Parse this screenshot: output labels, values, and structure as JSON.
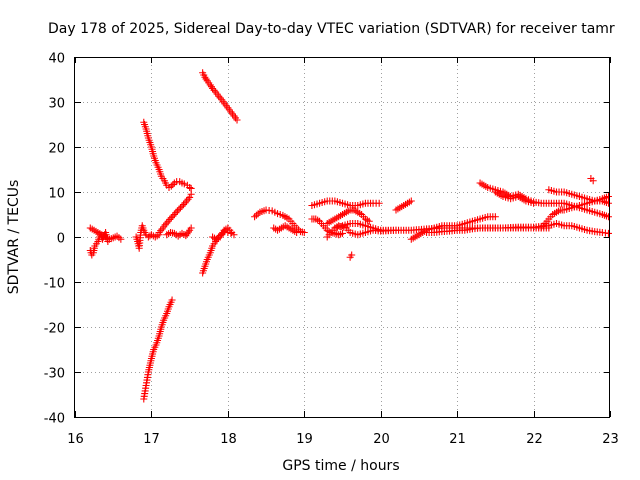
{
  "chart_data": {
    "type": "scatter",
    "title": "Day 178 of 2025, Sidereal Day-to-day VTEC variation (SDTVAR) for receiver tamr",
    "xlabel": "GPS time / hours",
    "ylabel": "SDTVAR / TECUs",
    "xlim": [
      16,
      23
    ],
    "ylim": [
      -40,
      40
    ],
    "xticks": [
      16,
      17,
      18,
      19,
      20,
      21,
      22,
      23
    ],
    "yticks": [
      -40,
      -30,
      -20,
      -10,
      0,
      10,
      20,
      30,
      40
    ],
    "grid": true,
    "marker": "+",
    "color": "#ff0000",
    "series": [
      {
        "values": [
          [
            16.2,
            2
          ],
          [
            16.25,
            1.5
          ],
          [
            16.3,
            1
          ],
          [
            16.35,
            0.5
          ],
          [
            16.4,
            0
          ],
          [
            16.45,
            -0.5
          ],
          [
            16.5,
            -0.2
          ],
          [
            16.55,
            0.2
          ],
          [
            16.6,
            -0.5
          ]
        ]
      },
      {
        "values": [
          [
            16.2,
            -3
          ],
          [
            16.22,
            -4
          ],
          [
            16.24,
            -3.5
          ],
          [
            16.26,
            -2
          ],
          [
            16.3,
            -1
          ],
          [
            16.33,
            0.5
          ],
          [
            16.36,
            -0.5
          ],
          [
            16.4,
            1
          ],
          [
            16.43,
            -1
          ]
        ]
      },
      {
        "values": [
          [
            16.8,
            0
          ],
          [
            16.82,
            -1
          ],
          [
            16.84,
            -2.5
          ],
          [
            16.86,
            1
          ],
          [
            16.88,
            2.5
          ],
          [
            16.9,
            1.5
          ],
          [
            16.93,
            0.5
          ],
          [
            16.96,
            0
          ],
          [
            17,
            0.5
          ],
          [
            17.05,
            0
          ],
          [
            17.1,
            0.5
          ]
        ]
      },
      {
        "values": [
          [
            16.9,
            25.5
          ],
          [
            16.93,
            24
          ],
          [
            16.96,
            22
          ],
          [
            17,
            20
          ],
          [
            17.03,
            18
          ],
          [
            17.06,
            16.5
          ],
          [
            17.1,
            15
          ],
          [
            17.13,
            13.5
          ],
          [
            17.17,
            12.5
          ],
          [
            17.2,
            11.5
          ],
          [
            17.23,
            11
          ],
          [
            17.26,
            11.3
          ],
          [
            17.3,
            12
          ],
          [
            17.33,
            12.3
          ],
          [
            17.37,
            12.3
          ],
          [
            17.4,
            12
          ],
          [
            17.43,
            11.8
          ],
          [
            17.47,
            11.5
          ],
          [
            17.5,
            11
          ],
          [
            17.52,
            10.8
          ]
        ]
      },
      {
        "values": [
          [
            17.1,
            1
          ],
          [
            17.14,
            1.8
          ],
          [
            17.18,
            2.7
          ],
          [
            17.22,
            3.5
          ],
          [
            17.26,
            4.3
          ],
          [
            17.3,
            5
          ],
          [
            17.34,
            5.8
          ],
          [
            17.38,
            6.5
          ],
          [
            17.42,
            7.2
          ],
          [
            17.46,
            8
          ],
          [
            17.5,
            8.8
          ],
          [
            17.52,
            9.5
          ]
        ]
      },
      {
        "values": [
          [
            17.2,
            0.5
          ],
          [
            17.25,
            1
          ],
          [
            17.3,
            0.8
          ],
          [
            17.35,
            0.2
          ],
          [
            17.4,
            0.8
          ],
          [
            17.45,
            0.3
          ],
          [
            17.5,
            1.5
          ],
          [
            17.52,
            2
          ]
        ]
      },
      {
        "values": [
          [
            16.9,
            -36
          ],
          [
            16.93,
            -33
          ],
          [
            16.96,
            -30
          ],
          [
            17,
            -27
          ],
          [
            17.03,
            -25
          ],
          [
            17.06,
            -24
          ],
          [
            17.1,
            -22
          ],
          [
            17.13,
            -20
          ],
          [
            17.16,
            -18.5
          ],
          [
            17.2,
            -17
          ],
          [
            17.23,
            -15.5
          ],
          [
            17.27,
            -14
          ]
        ]
      },
      {
        "values": [
          [
            17.67,
            36.5
          ],
          [
            17.7,
            35.5
          ],
          [
            17.73,
            34.7
          ],
          [
            17.77,
            33.8
          ],
          [
            17.8,
            33
          ],
          [
            17.84,
            32.2
          ],
          [
            17.88,
            31.3
          ],
          [
            17.92,
            30.5
          ],
          [
            17.96,
            29.6
          ],
          [
            18,
            28.7
          ],
          [
            18.04,
            27.8
          ],
          [
            18.08,
            26.9
          ],
          [
            18.12,
            26
          ]
        ]
      },
      {
        "values": [
          [
            17.67,
            -8
          ],
          [
            17.7,
            -6.5
          ],
          [
            17.73,
            -5
          ],
          [
            17.77,
            -3.5
          ],
          [
            17.8,
            -2
          ],
          [
            17.84,
            -1
          ],
          [
            17.88,
            0
          ],
          [
            17.92,
            0.7
          ],
          [
            17.96,
            1.2
          ],
          [
            18,
            1
          ],
          [
            18.04,
            0.8
          ],
          [
            18.08,
            0.5
          ]
        ]
      },
      {
        "values": [
          [
            17.8,
            0
          ],
          [
            17.85,
            -0.5
          ],
          [
            17.9,
            0
          ],
          [
            17.95,
            1.5
          ],
          [
            18,
            2
          ],
          [
            18.05,
            1
          ]
        ]
      },
      {
        "values": [
          [
            18.35,
            4.5
          ],
          [
            18.42,
            5.5
          ],
          [
            18.5,
            6
          ],
          [
            18.58,
            5.8
          ],
          [
            18.65,
            5.2
          ],
          [
            18.72,
            4.8
          ],
          [
            18.8,
            4
          ],
          [
            18.85,
            3
          ],
          [
            18.9,
            2
          ],
          [
            18.95,
            1.2
          ],
          [
            19,
            1
          ]
        ]
      },
      {
        "values": [
          [
            18.6,
            2
          ],
          [
            18.65,
            1.5
          ],
          [
            18.7,
            2
          ],
          [
            18.75,
            2.5
          ],
          [
            18.8,
            2
          ],
          [
            18.85,
            1.5
          ],
          [
            18.9,
            1
          ]
        ]
      },
      {
        "values": [
          [
            19.1,
            4
          ],
          [
            19.15,
            4
          ],
          [
            19.2,
            3.5
          ],
          [
            19.25,
            2.5
          ],
          [
            19.3,
            1.5
          ],
          [
            19.35,
            1
          ],
          [
            19.4,
            0.8
          ],
          [
            19.45,
            0.5
          ],
          [
            19.5,
            0.8
          ]
        ]
      },
      {
        "values": [
          [
            19.1,
            7
          ],
          [
            19.2,
            7.5
          ],
          [
            19.3,
            8
          ],
          [
            19.4,
            8
          ],
          [
            19.5,
            7.5
          ],
          [
            19.6,
            7
          ],
          [
            19.7,
            7
          ],
          [
            19.8,
            7.5
          ],
          [
            19.9,
            7.5
          ],
          [
            19.98,
            7.5
          ]
        ]
      },
      {
        "values": [
          [
            19.3,
            3
          ],
          [
            19.35,
            3.5
          ],
          [
            19.4,
            4
          ],
          [
            19.45,
            4.5
          ],
          [
            19.5,
            5
          ],
          [
            19.55,
            5.5
          ],
          [
            19.6,
            6
          ],
          [
            19.65,
            6
          ],
          [
            19.7,
            5.5
          ],
          [
            19.75,
            5
          ],
          [
            19.8,
            4
          ],
          [
            19.85,
            3.5
          ]
        ]
      },
      {
        "values": [
          [
            19.4,
            2
          ],
          [
            19.5,
            2.5
          ],
          [
            19.6,
            3
          ],
          [
            19.7,
            3
          ],
          [
            19.8,
            2.5
          ],
          [
            19.9,
            2
          ],
          [
            20,
            1.5
          ],
          [
            20.1,
            1.5
          ],
          [
            20.2,
            1.5
          ]
        ]
      },
      {
        "values": [
          [
            19.3,
            0
          ],
          [
            19.35,
            1
          ],
          [
            19.4,
            2
          ],
          [
            19.45,
            2.5
          ],
          [
            19.55,
            2
          ],
          [
            19.6,
            1
          ],
          [
            19.7,
            0.5
          ],
          [
            19.8,
            1
          ],
          [
            19.9,
            1.5
          ],
          [
            20,
            1.3
          ],
          [
            20.2,
            1.5
          ],
          [
            20.4,
            1.5
          ],
          [
            20.6,
            1.8
          ],
          [
            20.8,
            2
          ],
          [
            21,
            2
          ],
          [
            21.2,
            2
          ],
          [
            21.4,
            2
          ],
          [
            21.6,
            2
          ],
          [
            21.8,
            2
          ],
          [
            22,
            2
          ],
          [
            22.2,
            2
          ]
        ]
      },
      {
        "values": [
          [
            19.6,
            -4.5
          ],
          [
            19.62,
            -4
          ]
        ]
      },
      {
        "values": [
          [
            20.2,
            6
          ],
          [
            20.25,
            6.5
          ],
          [
            20.3,
            7
          ],
          [
            20.35,
            7.5
          ],
          [
            20.4,
            8
          ]
        ]
      },
      {
        "values": [
          [
            20.4,
            -0.5
          ],
          [
            20.45,
            0
          ],
          [
            20.5,
            0.5
          ],
          [
            20.55,
            1
          ],
          [
            20.6,
            1.5
          ],
          [
            20.7,
            2
          ],
          [
            20.8,
            2.5
          ],
          [
            20.9,
            2.5
          ],
          [
            21,
            2.5
          ],
          [
            21.1,
            3
          ],
          [
            21.2,
            3.5
          ],
          [
            21.3,
            4
          ],
          [
            21.4,
            4.5
          ],
          [
            21.5,
            4.5
          ]
        ]
      },
      {
        "values": [
          [
            20.6,
            1
          ],
          [
            20.7,
            1
          ],
          [
            20.8,
            1.2
          ],
          [
            20.9,
            1.3
          ],
          [
            21,
            1.5
          ],
          [
            21.1,
            1.5
          ],
          [
            21.2,
            1.8
          ],
          [
            21.3,
            2
          ],
          [
            21.4,
            2
          ],
          [
            21.5,
            2
          ],
          [
            21.6,
            2
          ],
          [
            21.8,
            2.2
          ],
          [
            22,
            2.2
          ],
          [
            22.2,
            2.5
          ],
          [
            22.3,
            3
          ],
          [
            22.4,
            2.5
          ],
          [
            22.5,
            2.5
          ],
          [
            22.6,
            2
          ],
          [
            22.7,
            1.5
          ],
          [
            22.8,
            1.2
          ],
          [
            22.9,
            1
          ],
          [
            22.98,
            0.8
          ]
        ]
      },
      {
        "values": [
          [
            21.3,
            12
          ],
          [
            21.4,
            11
          ],
          [
            21.5,
            10.5
          ],
          [
            21.6,
            10
          ],
          [
            21.7,
            9
          ],
          [
            21.8,
            9.5
          ],
          [
            21.9,
            8.5
          ],
          [
            22,
            7.8
          ],
          [
            22.1,
            7.5
          ],
          [
            22.2,
            7.5
          ],
          [
            22.3,
            7.5
          ],
          [
            22.4,
            7.5
          ],
          [
            22.5,
            7
          ],
          [
            22.6,
            6.5
          ],
          [
            22.7,
            6
          ],
          [
            22.8,
            5.5
          ],
          [
            22.9,
            5
          ],
          [
            22.98,
            4.5
          ]
        ]
      },
      {
        "values": [
          [
            21.5,
            10
          ],
          [
            21.6,
            9
          ],
          [
            21.7,
            8.5
          ],
          [
            21.8,
            9
          ],
          [
            21.9,
            8
          ],
          [
            22,
            7.5
          ]
        ]
      },
      {
        "values": [
          [
            22.2,
            10.5
          ],
          [
            22.3,
            10
          ],
          [
            22.4,
            10
          ],
          [
            22.5,
            9.5
          ],
          [
            22.6,
            9
          ],
          [
            22.7,
            8.5
          ],
          [
            22.8,
            8
          ],
          [
            22.9,
            8.5
          ],
          [
            22.98,
            9
          ]
        ]
      },
      {
        "values": [
          [
            22.1,
            2
          ],
          [
            22.15,
            3
          ],
          [
            22.2,
            4
          ],
          [
            22.25,
            5
          ],
          [
            22.3,
            5.5
          ],
          [
            22.35,
            6
          ],
          [
            22.4,
            6
          ],
          [
            22.5,
            6.5
          ],
          [
            22.6,
            7
          ],
          [
            22.7,
            7.5
          ],
          [
            22.8,
            8
          ],
          [
            22.9,
            8
          ],
          [
            22.98,
            7.5
          ]
        ]
      },
      {
        "values": [
          [
            22.75,
            13
          ],
          [
            22.78,
            12.5
          ]
        ]
      }
    ]
  }
}
